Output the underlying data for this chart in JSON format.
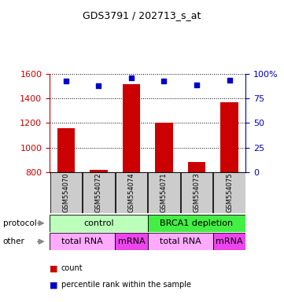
{
  "title": "GDS3791 / 202713_s_at",
  "samples": [
    "GSM554070",
    "GSM554072",
    "GSM554074",
    "GSM554071",
    "GSM554073",
    "GSM554075"
  ],
  "bar_values": [
    1160,
    820,
    1520,
    1200,
    880,
    1370
  ],
  "scatter_pct": [
    93,
    88,
    96,
    93,
    89,
    94
  ],
  "ylim_left": [
    800,
    1600
  ],
  "ylim_right": [
    0,
    100
  ],
  "yticks_left": [
    800,
    1000,
    1200,
    1400,
    1600
  ],
  "yticks_right": [
    0,
    25,
    50,
    75,
    100
  ],
  "bar_color": "#cc0000",
  "scatter_color": "#0000cc",
  "left_axis_color": "#cc0000",
  "right_axis_color": "#0000bb",
  "grid_color": "#000000",
  "protocol_labels": [
    {
      "text": "control",
      "start": 0,
      "end": 3,
      "color": "#bbffbb"
    },
    {
      "text": "BRCA1 depletion",
      "start": 3,
      "end": 6,
      "color": "#44ee44"
    }
  ],
  "other_labels": [
    {
      "text": "total RNA",
      "start": 0,
      "end": 2,
      "color": "#ffaaff"
    },
    {
      "text": "mRNA",
      "start": 2,
      "end": 3,
      "color": "#ee44ee"
    },
    {
      "text": "total RNA",
      "start": 3,
      "end": 5,
      "color": "#ffaaff"
    },
    {
      "text": "mRNA",
      "start": 5,
      "end": 6,
      "color": "#ee44ee"
    }
  ],
  "legend_items": [
    {
      "color": "#cc0000",
      "label": "count"
    },
    {
      "color": "#0000cc",
      "label": "percentile rank within the sample"
    }
  ],
  "sample_box_color": "#cccccc",
  "background_color": "#ffffff"
}
